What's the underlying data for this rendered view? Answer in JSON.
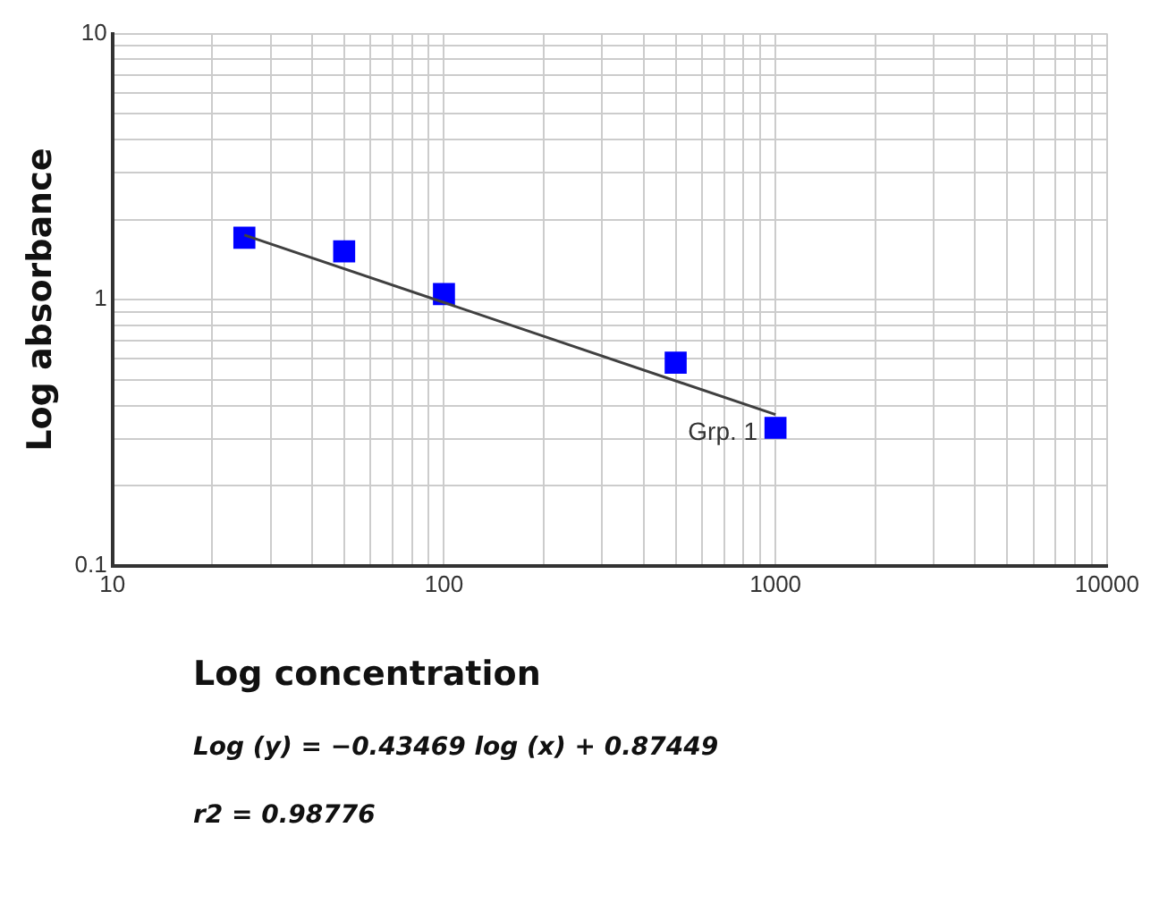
{
  "chart_data": {
    "type": "scatter",
    "xlabel": "Log concentration",
    "ylabel": "Log absorbance",
    "annotations": [
      {
        "text": "Grp. 1",
        "x": 1000,
        "y": 0.33
      },
      "Log (y) = −0.43469 log (x) + 0.87449",
      "r2 = 0.98776"
    ],
    "log": "xy",
    "grid": true,
    "legend": false,
    "marker": "square",
    "xlim": [
      10,
      10000
    ],
    "ylim": [
      0.1,
      10
    ],
    "xticks": [
      10,
      {
        "value": 20,
        "label": null
      },
      {
        "value": 30,
        "label": null
      },
      {
        "value": 40,
        "label": null
      },
      {
        "value": 50,
        "label": null
      },
      {
        "value": 60,
        "label": null
      },
      {
        "value": 70,
        "label": null
      },
      {
        "value": 80,
        "label": null
      },
      {
        "value": 90,
        "label": null
      },
      100,
      {
        "value": 200,
        "label": null
      },
      {
        "value": 300,
        "label": null
      },
      {
        "value": 400,
        "label": null
      },
      {
        "value": 500,
        "label": null
      },
      {
        "value": 600,
        "label": null
      },
      {
        "value": 700,
        "label": null
      },
      {
        "value": 800,
        "label": null
      },
      {
        "value": 900,
        "label": null
      },
      1000,
      {
        "value": 2000,
        "label": null
      },
      {
        "value": 3000,
        "label": null
      },
      {
        "value": 4000,
        "label": null
      },
      {
        "value": 5000,
        "label": null
      },
      {
        "value": 6000,
        "label": null
      },
      {
        "value": 7000,
        "label": null
      },
      {
        "value": 8000,
        "label": null
      },
      {
        "value": 9000,
        "label": null
      },
      10000
    ],
    "yticks": [
      0.1,
      {
        "value": 0.2,
        "label": null
      },
      {
        "value": 0.3,
        "label": null
      },
      {
        "value": 0.4,
        "label": null
      },
      {
        "value": 0.5,
        "label": null
      },
      {
        "value": 0.6,
        "label": null
      },
      {
        "value": 0.7,
        "label": null
      },
      {
        "value": 0.8,
        "label": null
      },
      {
        "value": 0.9,
        "label": null
      },
      1,
      {
        "value": 2,
        "label": null
      },
      {
        "value": 3,
        "label": null
      },
      {
        "value": 4,
        "label": null
      },
      {
        "value": 5,
        "label": null
      },
      {
        "value": 6,
        "label": null
      },
      {
        "value": 7,
        "label": null
      },
      {
        "value": 8,
        "label": null
      },
      {
        "value": 9,
        "label": null
      },
      10
    ],
    "x": [
      25,
      50,
      100,
      500,
      1000
    ],
    "series": [
      {
        "color": "#0000ff",
        "values": [
          1.71,
          1.52,
          1.05,
          0.58,
          0.33
        ]
      },
      {
        "type": "line",
        "color": "#404040",
        "x": [
          25,
          1000
        ],
        "values": [
          1.75,
          0.37
        ],
        "marker": "none",
        "line_style": "solid"
      }
    ]
  }
}
